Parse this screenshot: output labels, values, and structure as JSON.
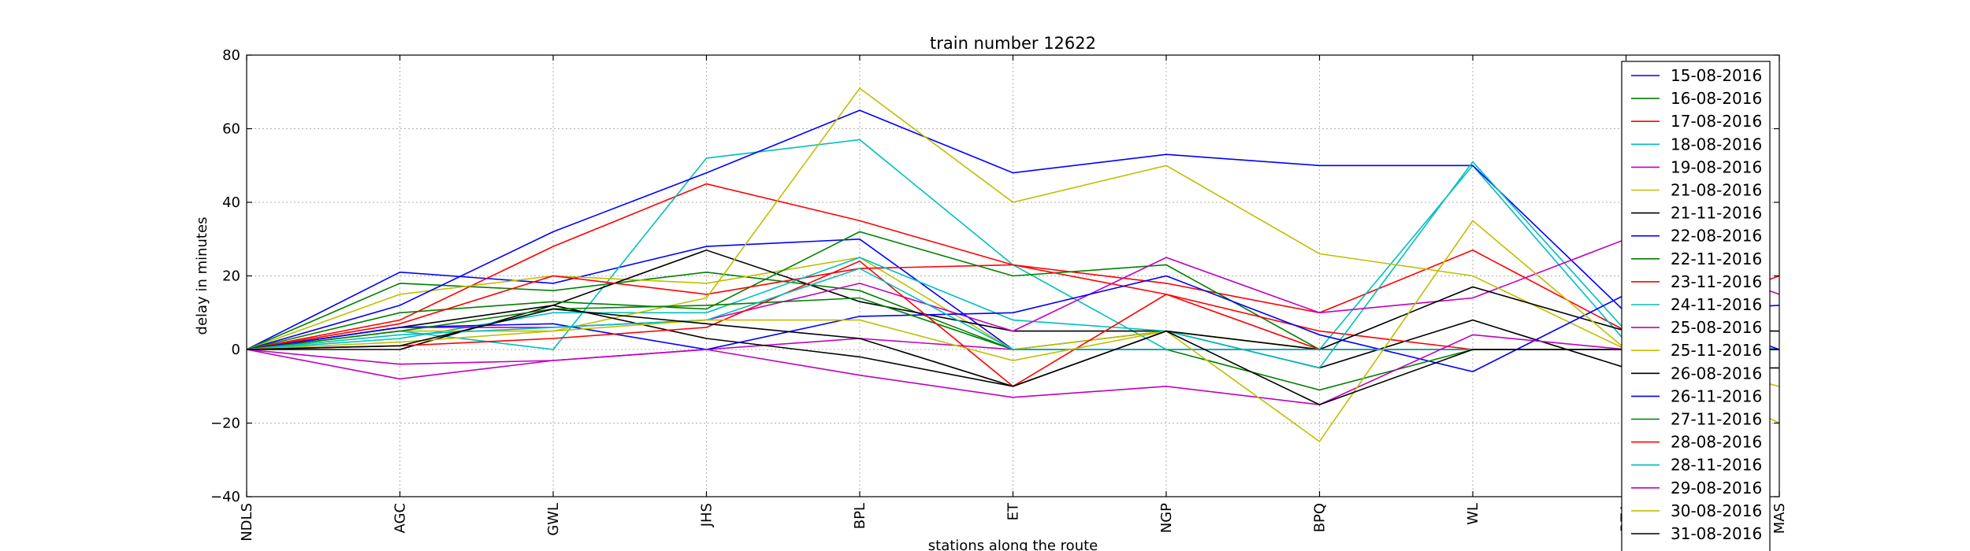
{
  "chart_data": {
    "type": "line",
    "title": "train number 12622",
    "xlabel": "stations along the route",
    "ylabel": "delay in minutes",
    "categories": [
      "NDLS",
      "AGC",
      "GWL",
      "JHS",
      "BPL",
      "ET",
      "NGP",
      "BPQ",
      "WL",
      "BZA",
      "MAS"
    ],
    "ylim": [
      -40,
      80
    ],
    "yticks": [
      -40,
      -20,
      0,
      20,
      40,
      60,
      80
    ],
    "ytick_labels": [
      "−40",
      "−20",
      "0",
      "20",
      "40",
      "60",
      "80"
    ],
    "grid": true,
    "legend_position": "upper-right",
    "series": [
      {
        "name": "15-08-2016",
        "color": "#0000ff",
        "values": [
          0,
          21,
          18,
          28,
          30,
          0,
          0,
          0,
          0,
          0,
          0
        ]
      },
      {
        "name": "16-08-2016",
        "color": "#008000",
        "values": [
          0,
          18,
          16,
          21,
          16,
          0,
          5,
          0,
          0,
          0,
          0
        ]
      },
      {
        "name": "17-08-2016",
        "color": "#ff0000",
        "values": [
          0,
          8,
          28,
          45,
          35,
          23,
          18,
          10,
          27,
          5,
          20
        ]
      },
      {
        "name": "18-08-2016",
        "color": "#00bfbf",
        "values": [
          0,
          5,
          0,
          52,
          57,
          23,
          0,
          0,
          50,
          2,
          0
        ]
      },
      {
        "name": "19-08-2016",
        "color": "#bf00bf",
        "values": [
          0,
          -8,
          -3,
          0,
          3,
          0,
          0,
          0,
          0,
          0,
          0
        ]
      },
      {
        "name": "21-08-2016",
        "color": "#bfbf00",
        "values": [
          0,
          15,
          20,
          18,
          25,
          0,
          5,
          0,
          0,
          0,
          -20
        ]
      },
      {
        "name": "21-11-2016",
        "color": "#000000",
        "values": [
          0,
          0,
          12,
          27,
          13,
          5,
          5,
          -5,
          8,
          -5,
          -5
        ]
      },
      {
        "name": "22-08-2016",
        "color": "#0000ff",
        "values": [
          0,
          12,
          32,
          48,
          65,
          48,
          53,
          50,
          50,
          10,
          12
        ]
      },
      {
        "name": "22-11-2016",
        "color": "#008000",
        "values": [
          0,
          10,
          13,
          11,
          32,
          20,
          23,
          0,
          0,
          0,
          0
        ]
      },
      {
        "name": "23-11-2016",
        "color": "#ff0000",
        "values": [
          0,
          7,
          20,
          15,
          22,
          23,
          15,
          5,
          0,
          0,
          0
        ]
      },
      {
        "name": "24-11-2016",
        "color": "#00bfbf",
        "values": [
          0,
          3,
          10,
          10,
          25,
          8,
          5,
          -5,
          51,
          5,
          0
        ]
      },
      {
        "name": "25-08-2016",
        "color": "#bf00bf",
        "values": [
          0,
          6,
          6,
          8,
          18,
          5,
          25,
          10,
          14,
          30,
          15
        ]
      },
      {
        "name": "25-11-2016",
        "color": "#bfbf00",
        "values": [
          0,
          5,
          5,
          14,
          71,
          40,
          50,
          26,
          20,
          0,
          0
        ]
      },
      {
        "name": "26-08-2016",
        "color": "#000000",
        "values": [
          0,
          6,
          12,
          3,
          -2,
          -10,
          5,
          0,
          17,
          5,
          5
        ]
      },
      {
        "name": "26-11-2016",
        "color": "#0000ff",
        "values": [
          0,
          6,
          7,
          0,
          9,
          10,
          20,
          4,
          -6,
          15,
          0
        ]
      },
      {
        "name": "27-11-2016",
        "color": "#008000",
        "values": [
          0,
          5,
          11,
          12,
          14,
          0,
          0,
          -11,
          0,
          0,
          0
        ]
      },
      {
        "name": "28-08-2016",
        "color": "#ff0000",
        "values": [
          0,
          1,
          3,
          6,
          24,
          -10,
          15,
          0,
          0,
          0,
          0
        ]
      },
      {
        "name": "28-11-2016",
        "color": "#00bfbf",
        "values": [
          0,
          4,
          6,
          8,
          22,
          0,
          0,
          0,
          0,
          0,
          0
        ]
      },
      {
        "name": "29-08-2016",
        "color": "#bf00bf",
        "values": [
          0,
          -4,
          -3,
          0,
          -7,
          -13,
          -10,
          -15,
          4,
          0,
          0
        ]
      },
      {
        "name": "30-08-2016",
        "color": "#bfbf00",
        "values": [
          0,
          2,
          5,
          8,
          8,
          -3,
          5,
          -25,
          35,
          0,
          -10
        ]
      },
      {
        "name": "31-08-2016",
        "color": "#000000",
        "values": [
          0,
          1,
          11,
          7,
          3,
          -10,
          5,
          -15,
          0,
          0,
          0
        ]
      }
    ]
  }
}
